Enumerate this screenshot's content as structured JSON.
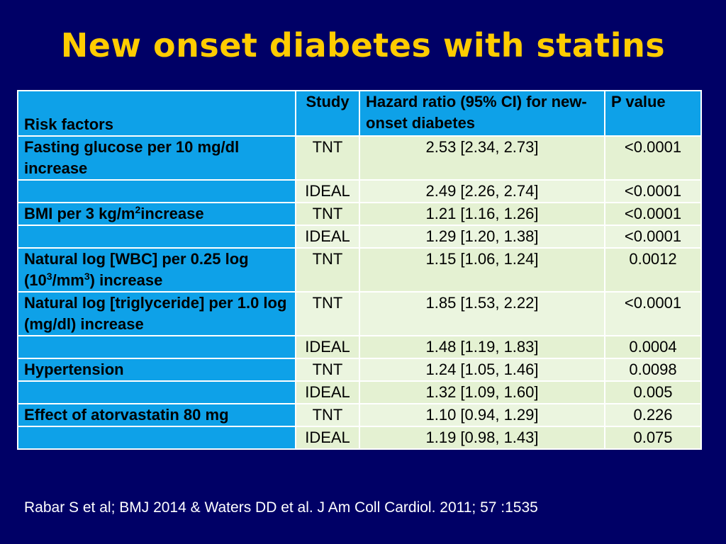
{
  "slide": {
    "title": "New onset diabetes with statins",
    "citation": "Rabar S et al; BMJ 2014 & Waters DD et al. J Am Coll Cardiol. 2011; 57 :1535",
    "colors": {
      "background": "#000066",
      "title": "#ffcc00",
      "header_cell": "#0ea1e8",
      "data_cell": "#e4f1d2"
    }
  },
  "table": {
    "headers": {
      "risk_factors": "Risk factors",
      "study": "Study",
      "hazard_ratio": "Hazard ratio (95% CI) for new-onset diabetes",
      "p_value": "P value"
    },
    "rows": [
      {
        "risk_factor": "Fasting glucose per 10 mg/dl increase",
        "study": "TNT",
        "hr": "2.53 [2.34, 2.73]",
        "p": "<0.0001"
      },
      {
        "risk_factor": "",
        "study": "IDEAL",
        "hr": "2.49 [2.26, 2.74]",
        "p": "<0.0001"
      },
      {
        "risk_factor_main": "BMI per 3 kg/m",
        "risk_factor_sup": "2",
        "risk_factor_tail": "increase",
        "study": "TNT",
        "hr": "1.21 [1.16, 1.26]",
        "p": "<0.0001"
      },
      {
        "risk_factor": "",
        "study": "IDEAL",
        "hr": "1.29 [1.20, 1.38]",
        "p": "<0.0001"
      },
      {
        "risk_factor_main": "Natural log [WBC] per 0.25 log (10",
        "risk_factor_sup": "3",
        "risk_factor_tail": "/mm",
        "risk_factor_sup2": "3",
        "risk_factor_tail2": ") increase",
        "study": "TNT",
        "hr": "1.15 [1.06, 1.24]",
        "p": "0.0012"
      },
      {
        "risk_factor": "Natural log [triglyceride] per 1.0 log (mg/dl) increase",
        "study": "TNT",
        "hr": "1.85 [1.53, 2.22]",
        "p": "<0.0001"
      },
      {
        "risk_factor": "",
        "study": "IDEAL",
        "hr": "1.48 [1.19, 1.83]",
        "p": "0.0004"
      },
      {
        "risk_factor": "Hypertension",
        "study": "TNT",
        "hr": "1.24 [1.05, 1.46]",
        "p": "0.0098"
      },
      {
        "risk_factor": "",
        "study": "IDEAL",
        "hr": "1.32 [1.09, 1.60]",
        "p": "0.005"
      },
      {
        "risk_factor": "Effect of atorvastatin 80 mg",
        "study": "TNT",
        "hr": "1.10 [0.94, 1.29]",
        "p": "0.226"
      },
      {
        "risk_factor": "",
        "study": "IDEAL",
        "hr": "1.19 [0.98, 1.43]",
        "p": "0.075"
      }
    ]
  }
}
